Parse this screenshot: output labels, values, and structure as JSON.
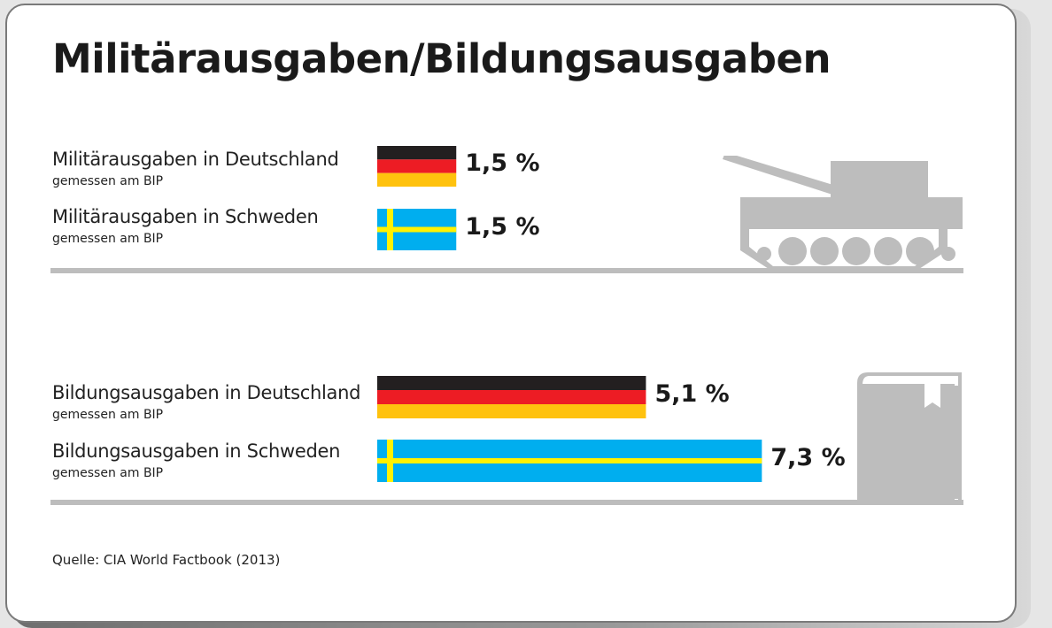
{
  "title": "Militärausgaben/Bildungsausgaben",
  "source": "Quelle: CIA World Factbook (2013)",
  "colors": {
    "de_black": "#231f20",
    "de_red": "#ed1c24",
    "de_gold": "#ffc20e",
    "se_blue": "#00aeef",
    "se_yellow": "#fff200",
    "icon_gray": "#bdbdbd"
  },
  "icons": {
    "military": "tank-icon",
    "education": "book-icon"
  },
  "chart_data": {
    "type": "bar",
    "orientation": "horizontal",
    "unit": "%",
    "groups": [
      {
        "name": "military",
        "items": [
          {
            "label": "Militärausgaben in Deutschland",
            "sublabel": "gemessen am BIP",
            "country": "Deutschland",
            "flag": "de",
            "value": 1.5,
            "value_label": "1,5 %"
          },
          {
            "label": "Militärausgaben in Schweden",
            "sublabel": "gemessen am BIP",
            "country": "Schweden",
            "flag": "se",
            "value": 1.5,
            "value_label": "1,5 %"
          }
        ]
      },
      {
        "name": "education",
        "items": [
          {
            "label": "Bildungsausgaben in Deutschland",
            "sublabel": "gemessen am BIP",
            "country": "Deutschland",
            "flag": "de",
            "value": 5.1,
            "value_label": "5,1 %"
          },
          {
            "label": "Bildungsausgaben in Schweden",
            "sublabel": "gemessen am BIP",
            "country": "Schweden",
            "flag": "se",
            "value": 7.3,
            "value_label": "7,3 %"
          }
        ]
      }
    ]
  }
}
